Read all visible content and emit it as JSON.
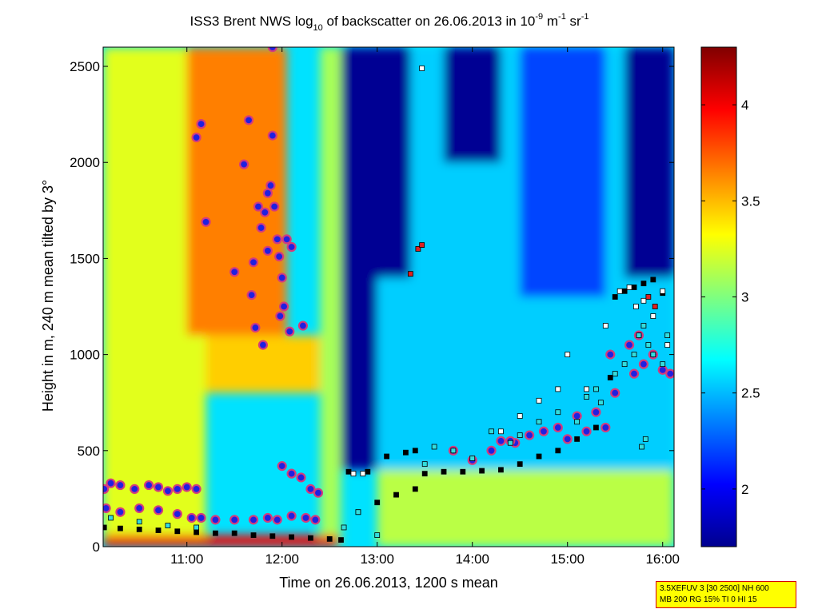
{
  "chart_data": {
    "type": "heatmap",
    "title": {
      "main": "ISS3 Brent NWS log",
      "sub": "10",
      "mid": " of backscatter on 26.06.2013 in 10",
      "sup1": "-9",
      "unit1": " m",
      "sup2": "-1",
      "unit2": " sr",
      "sup3": "-1"
    },
    "xlabel": "Time on 26.06.2013, 1200 s mean",
    "ylabel": "Height in m, 240 m mean tilted by 3°",
    "x_tick_labels": [
      "11:00",
      "12:00",
      "13:00",
      "14:00",
      "15:00",
      "16:00"
    ],
    "x_ticks_hours": [
      11,
      12,
      13,
      14,
      15,
      16
    ],
    "xlim_hours": [
      10.12,
      16.12
    ],
    "y_ticks": [
      0,
      500,
      1000,
      1500,
      2000,
      2500
    ],
    "ylim": [
      0,
      2600
    ],
    "colorbar": {
      "ticks": [
        "2",
        "2.5",
        "3",
        "3.5",
        "4"
      ],
      "tick_values": [
        2,
        2.5,
        3,
        3.5,
        4
      ],
      "range": [
        1.7,
        4.3
      ]
    },
    "colors": {
      "low": "#00008f",
      "mid": "#7fff7f",
      "high": "#800000",
      "marker_fill": "#2020e0",
      "marker_ring": "#d43c7c"
    },
    "info_box": {
      "line1": "3.5XEFUV 3 [30 2500] NH 600",
      "line2": "MB 200 RG 15% TI 0 HI 15"
    },
    "field_regions": [
      {
        "t0": 10.12,
        "t1": 11.2,
        "h0": 0,
        "h1": 2600,
        "value": 3.25
      },
      {
        "t0": 11.0,
        "t1": 12.05,
        "h0": 1100,
        "h1": 2600,
        "value": 3.65
      },
      {
        "t0": 11.2,
        "t1": 12.4,
        "h0": 800,
        "h1": 1100,
        "value": 3.45
      },
      {
        "t0": 12.4,
        "t1": 12.62,
        "h0": 0,
        "h1": 2600,
        "value": 3.1
      },
      {
        "t0": 12.62,
        "t1": 13.0,
        "h0": 400,
        "h1": 2600,
        "value": 1.75
      },
      {
        "t0": 13.0,
        "t1": 16.12,
        "h0": 0,
        "h1": 400,
        "value": 3.15
      },
      {
        "t0": 13.0,
        "t1": 16.12,
        "h0": 400,
        "h1": 2600,
        "value": 2.55
      },
      {
        "t0": 12.62,
        "t1": 13.35,
        "h0": 1400,
        "h1": 2600,
        "value": 1.75
      },
      {
        "t0": 13.7,
        "t1": 14.3,
        "h0": 2000,
        "h1": 2600,
        "value": 1.75
      },
      {
        "t0": 14.5,
        "t1": 15.4,
        "h0": 1300,
        "h1": 2600,
        "value": 2.2
      },
      {
        "t0": 15.6,
        "t1": 16.12,
        "h0": 1400,
        "h1": 2600,
        "value": 1.75
      },
      {
        "t0": 10.12,
        "t1": 12.6,
        "h0": 0,
        "h1": 60,
        "value": 4.0
      }
    ],
    "series": [
      {
        "name": "",
        "marker": "circle",
        "x_hours": [
          10.13,
          10.2,
          10.3,
          10.45,
          10.6,
          10.7,
          10.8,
          10.9,
          11.0,
          11.1,
          10.15,
          10.3,
          10.5,
          10.7,
          10.9,
          11.05,
          11.15,
          11.3,
          11.5,
          11.7,
          11.85,
          11.95,
          12.1,
          12.25,
          12.35,
          12.0,
          12.1,
          12.2,
          12.3,
          12.38,
          11.1,
          11.15,
          11.2,
          11.5,
          11.6,
          11.65,
          11.7,
          11.75,
          11.8,
          11.82,
          11.85,
          11.88,
          11.9,
          11.92,
          11.95,
          11.97,
          11.98,
          12.0,
          12.02,
          12.05,
          12.08,
          12.1,
          11.68,
          11.78,
          11.85,
          11.9,
          11.72,
          12.22,
          14.3,
          14.45,
          14.6,
          14.75,
          14.9,
          15.0,
          15.1,
          15.2,
          15.3,
          15.4,
          15.5,
          15.7,
          15.8,
          15.9,
          16.0,
          16.08,
          13.8,
          14.0,
          14.2,
          14.4,
          15.45,
          15.65,
          15.75
        ],
        "y": [
          300,
          330,
          320,
          300,
          320,
          310,
          290,
          300,
          310,
          300,
          200,
          180,
          200,
          190,
          170,
          150,
          150,
          140,
          140,
          140,
          150,
          140,
          160,
          150,
          140,
          420,
          380,
          360,
          300,
          280,
          2130,
          2200,
          1690,
          1430,
          1990,
          2220,
          1480,
          1770,
          1050,
          1740,
          1540,
          1880,
          2600,
          1770,
          1600,
          1510,
          1200,
          1400,
          1250,
          1600,
          1120,
          1560,
          1310,
          1660,
          1840,
          2140,
          1140,
          1150,
          550,
          540,
          580,
          600,
          620,
          560,
          680,
          600,
          700,
          620,
          800,
          900,
          950,
          1000,
          920,
          900,
          500,
          450,
          500,
          550,
          1000,
          1050,
          1100
        ]
      },
      {
        "name": "",
        "marker": "square-black",
        "x_hours": [
          10.13,
          10.3,
          10.5,
          10.7,
          10.9,
          11.1,
          11.3,
          11.5,
          11.7,
          11.9,
          12.1,
          12.3,
          12.5,
          12.62,
          12.8,
          13.0,
          13.2,
          13.4,
          13.5,
          13.7,
          13.9,
          14.1,
          14.3,
          14.5,
          14.7,
          14.9,
          15.1,
          15.3,
          15.45,
          15.5,
          15.6,
          15.7,
          15.8,
          15.9,
          16.0,
          12.7,
          12.9,
          13.1,
          13.3,
          13.4
        ],
        "y": [
          100,
          95,
          90,
          85,
          80,
          75,
          70,
          70,
          60,
          55,
          50,
          45,
          40,
          35,
          180,
          230,
          270,
          300,
          380,
          390,
          390,
          395,
          400,
          430,
          470,
          500,
          560,
          620,
          880,
          1300,
          1330,
          1350,
          1370,
          1390,
          1320,
          390,
          390,
          470,
          490,
          500
        ]
      },
      {
        "name": "",
        "marker": "square-cyan",
        "x_hours": [
          10.2,
          10.5,
          10.8,
          11.1,
          12.65,
          12.8,
          13.0,
          13.5,
          13.6,
          13.8,
          14.0,
          14.2,
          14.4,
          14.5,
          14.7,
          14.9,
          15.1,
          15.2,
          15.3,
          15.35,
          15.5,
          15.6,
          15.7,
          15.75,
          15.8,
          15.85,
          15.9,
          16.0,
          16.05,
          15.78,
          15.82
        ],
        "y": [
          150,
          130,
          110,
          100,
          100,
          180,
          60,
          430,
          520,
          500,
          460,
          600,
          540,
          580,
          650,
          700,
          650,
          780,
          820,
          750,
          900,
          950,
          1000,
          1100,
          1150,
          1050,
          1000,
          950,
          1100,
          520,
          560
        ]
      },
      {
        "name": "",
        "marker": "square-white",
        "x_hours": [
          13.47,
          14.3,
          14.5,
          14.7,
          14.9,
          15.0,
          15.2,
          15.4,
          15.55,
          15.65,
          15.72,
          15.8,
          15.9,
          16.0,
          16.05,
          12.75,
          12.85
        ],
        "y": [
          2490,
          600,
          680,
          760,
          820,
          1000,
          820,
          1150,
          1330,
          1350,
          1250,
          1280,
          1200,
          1330,
          1050,
          380,
          380
        ]
      },
      {
        "name": "",
        "marker": "square-red",
        "x_hours": [
          13.43,
          13.47,
          13.35,
          15.85,
          15.92
        ],
        "y": [
          1550,
          1570,
          1420,
          1300,
          1250
        ]
      }
    ]
  }
}
